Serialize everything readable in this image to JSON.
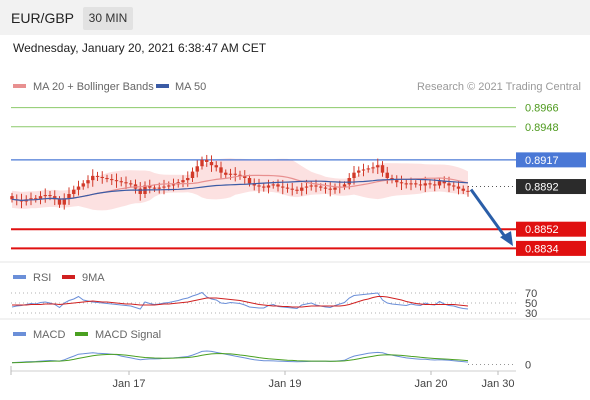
{
  "header": {
    "pair": "EUR/GBP",
    "timeframe": "30 MIN",
    "datetime": "Wednesday, January 20, 2021 6:38:47 AM CET"
  },
  "colors": {
    "candle": "#d23a2a",
    "ma20": "#e89090",
    "band_fill": "#fbdada",
    "ma50": "#3b5ba5",
    "pivot": "#4a78d6",
    "resistance": "#8cc96a",
    "support": "#e01010",
    "current": "#2b2b2b",
    "arrow": "#2a5ea8",
    "rsi": "#6b8fd8",
    "rsi_ma": "#d02020",
    "macd": "#6b8fd8",
    "macd_signal": "#4aa020"
  },
  "chart_data": [
    {
      "type": "candlestick",
      "legend": {
        "ma20": "MA 20 + Bollinger Bands",
        "ma50": "MA 50",
        "source": "Research © 2021 Trading Central"
      },
      "ylim": [
        0.8825,
        0.8975
      ],
      "levels": [
        {
          "value": 0.8966,
          "label": "0.8966",
          "kind": "resistance"
        },
        {
          "value": 0.8948,
          "label": "0.8948",
          "kind": "resistance"
        },
        {
          "value": 0.8917,
          "label": "0.8917",
          "kind": "pivot"
        },
        {
          "value": 0.8892,
          "label": "0.8892",
          "kind": "current"
        },
        {
          "value": 0.8852,
          "label": "0.8852",
          "kind": "support"
        },
        {
          "value": 0.8834,
          "label": "0.8834",
          "kind": "support"
        }
      ],
      "arrow": {
        "from": 0.8892,
        "to": 0.8838,
        "direction": "down"
      },
      "close_series": [
        0.888,
        0.8879,
        0.8878,
        0.888,
        0.8881,
        0.888,
        0.8883,
        0.8884,
        0.8883,
        0.888,
        0.8875,
        0.8881,
        0.8885,
        0.8889,
        0.8892,
        0.8895,
        0.8898,
        0.8902,
        0.8901,
        0.89,
        0.8899,
        0.8898,
        0.8897,
        0.8896,
        0.8895,
        0.8894,
        0.889,
        0.8885,
        0.8893,
        0.8891,
        0.889,
        0.8891,
        0.8892,
        0.8893,
        0.8894,
        0.8896,
        0.8898,
        0.89,
        0.8906,
        0.8911,
        0.8917,
        0.8915,
        0.8912,
        0.891,
        0.8905,
        0.8903,
        0.8904,
        0.8903,
        0.8902,
        0.89,
        0.8895,
        0.8893,
        0.8892,
        0.8891,
        0.8893,
        0.8894,
        0.8892,
        0.8891,
        0.889,
        0.8889,
        0.8888,
        0.8891,
        0.8892,
        0.8893,
        0.8892,
        0.8891,
        0.889,
        0.8889,
        0.8891,
        0.8892,
        0.8894,
        0.89,
        0.8905,
        0.8907,
        0.8908,
        0.8909,
        0.891,
        0.8912,
        0.8905,
        0.89,
        0.8898,
        0.8896,
        0.8895,
        0.8894,
        0.8895,
        0.8894,
        0.8893,
        0.8895,
        0.8894,
        0.8893,
        0.8897,
        0.8895,
        0.8893,
        0.8892,
        0.889,
        0.8888,
        0.8887
      ]
    },
    {
      "type": "line",
      "legend": [
        "RSI",
        "9MA"
      ],
      "ylim": [
        20,
        80
      ],
      "ticks": [
        {
          "value": 70,
          "label": "70"
        },
        {
          "value": 50,
          "label": "50"
        },
        {
          "value": 30,
          "label": "30"
        }
      ],
      "series": [
        {
          "name": "RSI",
          "values": [
            42,
            44,
            45,
            47,
            49,
            48,
            51,
            52,
            50,
            47,
            41,
            50,
            55,
            58,
            63,
            56,
            54,
            52,
            51,
            50,
            49,
            48,
            47,
            46,
            45,
            44,
            41,
            38,
            52,
            49,
            47,
            48,
            50,
            51,
            53,
            55,
            58,
            60,
            64,
            67,
            71,
            62,
            58,
            56,
            50,
            49,
            51,
            50,
            49,
            46,
            42,
            41,
            40,
            40,
            45,
            47,
            43,
            42,
            41,
            40,
            39,
            46,
            48,
            50,
            46,
            44,
            42,
            41,
            45,
            48,
            51,
            60,
            65,
            66,
            67,
            68,
            69,
            70,
            56,
            50,
            48,
            47,
            46,
            45,
            48,
            46,
            45,
            50,
            47,
            46,
            53,
            48,
            45,
            44,
            41,
            39,
            38
          ]
        },
        {
          "name": "9MA",
          "values": [
            46,
            46,
            46,
            46,
            47,
            47,
            47,
            48,
            48,
            48,
            47,
            48,
            49,
            50,
            51,
            52,
            53,
            54,
            53,
            52,
            52,
            51,
            50,
            49,
            48,
            48,
            47,
            46,
            46,
            46,
            46,
            47,
            48,
            48,
            49,
            50,
            51,
            52,
            54,
            56,
            58,
            60,
            60,
            60,
            59,
            58,
            57,
            56,
            55,
            53,
            51,
            49,
            47,
            46,
            45,
            44,
            44,
            43,
            43,
            42,
            42,
            42,
            43,
            44,
            44,
            44,
            44,
            44,
            44,
            44,
            45,
            47,
            50,
            53,
            56,
            58,
            61,
            63,
            63,
            62,
            60,
            58,
            56,
            53,
            51,
            49,
            48,
            47,
            47,
            47,
            47,
            47,
            47,
            47,
            46,
            45,
            44
          ]
        }
      ]
    },
    {
      "type": "line",
      "legend": [
        "MACD",
        "MACD Signal"
      ],
      "ylim": [
        -0.0006,
        0.0022
      ],
      "ticks": [
        {
          "value": 0,
          "label": "0"
        }
      ],
      "xlabels": [
        "Jan 17",
        "Jan 19",
        "Jan 20",
        "Jan 30"
      ],
      "series": [
        {
          "name": "MACD",
          "values": [
            0.0002,
            0.00022,
            0.00025,
            0.00028,
            0.0003,
            0.00032,
            0.00036,
            0.0004,
            0.00042,
            0.0004,
            0.00036,
            0.0005,
            0.0007,
            0.0009,
            0.0011,
            0.00115,
            0.0012,
            0.00125,
            0.0012,
            0.00118,
            0.00115,
            0.0011,
            0.00105,
            0.0009,
            0.0008,
            0.0007,
            0.0006,
            0.0005,
            0.00055,
            0.0006,
            0.0006,
            0.00062,
            0.00065,
            0.00068,
            0.0007,
            0.00075,
            0.0008,
            0.00085,
            0.001,
            0.0012,
            0.0014,
            0.00145,
            0.0014,
            0.0013,
            0.0012,
            0.0011,
            0.001,
            0.0009,
            0.0008,
            0.0007,
            0.0006,
            0.0005,
            0.00045,
            0.0004,
            0.0004,
            0.00038,
            0.00036,
            0.00034,
            0.00032,
            0.0003,
            0.00028,
            0.0003,
            0.00032,
            0.00034,
            0.00035,
            0.00035,
            0.00034,
            0.00033,
            0.00036,
            0.0004,
            0.00045,
            0.0007,
            0.0009,
            0.001,
            0.0011,
            0.0012,
            0.00125,
            0.0013,
            0.00125,
            0.0011,
            0.001,
            0.0009,
            0.0008,
            0.0007,
            0.00065,
            0.0006,
            0.00055,
            0.00055,
            0.0005,
            0.00048,
            0.0005,
            0.00048,
            0.00045,
            0.0004,
            0.00035,
            0.0003,
            0.00025
          ]
        },
        {
          "name": "MACD Signal",
          "values": [
            0.00018,
            0.0002,
            0.00021,
            0.00023,
            0.00025,
            0.00027,
            0.00029,
            0.00032,
            0.00034,
            0.00036,
            0.00036,
            0.00039,
            0.00045,
            0.00054,
            0.00065,
            0.00075,
            0.00084,
            0.00093,
            0.001,
            0.00104,
            0.00107,
            0.00108,
            0.00108,
            0.00105,
            0.001,
            0.00094,
            0.00087,
            0.0008,
            0.00075,
            0.00072,
            0.00069,
            0.00068,
            0.00067,
            0.00067,
            0.00068,
            0.0007,
            0.00072,
            0.00075,
            0.0008,
            0.00088,
            0.00098,
            0.00107,
            0.00113,
            0.00117,
            0.00118,
            0.00116,
            0.00113,
            0.00108,
            0.00102,
            0.00096,
            0.00089,
            0.00081,
            0.00074,
            0.00067,
            0.00062,
            0.00057,
            0.00053,
            0.00049,
            0.00046,
            0.00043,
            0.0004,
            0.00038,
            0.00037,
            0.00036,
            0.00036,
            0.00036,
            0.00036,
            0.00035,
            0.00035,
            0.00036,
            0.00038,
            0.00044,
            0.00052,
            0.00062,
            0.00071,
            0.0008,
            0.00089,
            0.00097,
            0.00102,
            0.00104,
            0.00103,
            0.00101,
            0.00097,
            0.00092,
            0.00087,
            0.00082,
            0.00077,
            0.00072,
            0.00068,
            0.00064,
            0.00061,
            0.00058,
            0.00055,
            0.00052,
            0.00049,
            0.00045,
            0.00041
          ]
        }
      ]
    }
  ]
}
